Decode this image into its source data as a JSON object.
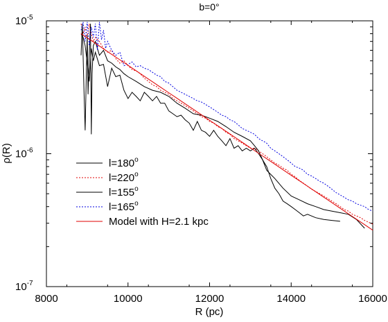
{
  "chart_data": {
    "type": "line",
    "title": "b=0°",
    "xlabel": "R (pc)",
    "ylabel": "ρ(R)",
    "xlim": [
      8000,
      16000
    ],
    "ylim_exponents": [
      -7,
      -5
    ],
    "y_scale": "log",
    "x_ticks": [
      "8000",
      "10000",
      "12000",
      "14000",
      "16000"
    ],
    "y_ticks": [
      {
        "base": "10",
        "exp": "-7",
        "value": 1e-07
      },
      {
        "base": "10",
        "exp": "-6",
        "value": 1e-06
      },
      {
        "base": "10",
        "exp": "-5",
        "value": 1e-05
      }
    ],
    "legend_position": "lower-left",
    "grid": false,
    "series": [
      {
        "name": "l=180°",
        "name_text": "l=180",
        "name_sup": "o",
        "color": "#000000",
        "dash": "",
        "x": [
          8850,
          8900,
          8950,
          9000,
          9050,
          9100,
          9150,
          9200,
          9300,
          9400,
          9500,
          9600,
          9700,
          9800,
          9900,
          10000,
          10100,
          10200,
          10300,
          10400,
          10500,
          10600,
          10700,
          10800,
          10900,
          11000,
          11100,
          11200,
          11300,
          11400,
          11500,
          11600,
          11700,
          11800,
          11900,
          12000,
          12100,
          12200,
          12300,
          12400,
          12500,
          12600,
          12700,
          12800,
          12900,
          13000,
          13100,
          13200,
          13300,
          13400,
          13500,
          13600,
          13700,
          13800,
          13900,
          14000,
          14100,
          14200,
          14300,
          14400,
          14600,
          14800,
          15000,
          15200
        ],
        "y": [
          8e-06,
          7.5e-06,
          6.5e-06,
          4.8e-06,
          3.5e-06,
          6.2e-06,
          5e-06,
          5.8e-06,
          4.6e-06,
          4.7e-06,
          3.2e-06,
          4.4e-06,
          3.8e-06,
          3.9e-06,
          3e-06,
          2.6e-06,
          2.9e-06,
          2.7e-06,
          2.5e-06,
          2.9e-06,
          2.7e-06,
          2.5e-06,
          2.7e-06,
          2.4e-06,
          2.4e-06,
          2.1e-06,
          2e-06,
          1.9e-06,
          1.95e-06,
          1.8e-06,
          1.7e-06,
          1.5e-06,
          1.75e-06,
          1.5e-06,
          1.45e-06,
          1.35e-06,
          1.5e-06,
          1.35e-06,
          1.25e-06,
          1.15e-06,
          1.3e-06,
          1.1e-06,
          1.15e-06,
          1.05e-06,
          1.1e-06,
          1.05e-06,
          1.1e-06,
          1e-06,
          9e-07,
          8e-07,
          6.5e-07,
          5.5e-07,
          5e-07,
          4.4e-07,
          4.2e-07,
          4e-07,
          3.8e-07,
          3.6e-07,
          3.4e-07,
          3.5e-07,
          3.3e-07,
          3.2e-07,
          3.15e-07,
          3.1e-07
        ]
      },
      {
        "name": "l=220°",
        "name_text": "l=220",
        "name_sup": "o",
        "color": "#e00000",
        "dash": "2,2",
        "x": [
          8850,
          8900,
          8950,
          9000,
          9050,
          9100,
          9150,
          9200,
          9300,
          9400,
          9500,
          9600,
          9700,
          9800,
          9900,
          10000,
          10100,
          10200,
          10300,
          10400,
          10500,
          10600,
          10700,
          10800,
          10900,
          11000,
          11100,
          11200,
          11300,
          11400,
          11500,
          11600,
          11700,
          11800,
          11900,
          12000,
          12100,
          12200,
          12300,
          12400,
          12500,
          12600,
          12700,
          12800,
          12900,
          13000,
          13100,
          13200,
          13300,
          13400,
          13500,
          13600,
          13700,
          13800,
          13900,
          14000,
          14100,
          14200,
          14300,
          14400,
          14500,
          14600,
          14700,
          14800,
          14900,
          15000,
          15100,
          15200,
          15300,
          15400,
          15500,
          15600,
          15700,
          15800,
          15900,
          16000
        ],
        "y": [
          9.5e-06,
          8e-06,
          9e-06,
          7.5e-06,
          9.5e-06,
          8e-06,
          7e-06,
          7.5e-06,
          7e-06,
          6.2e-06,
          5.8e-06,
          6e-06,
          5.2e-06,
          4.8e-06,
          5e-06,
          4.6e-06,
          4.3e-06,
          4.2e-06,
          4e-06,
          3.7e-06,
          3.5e-06,
          3.3e-06,
          3.2e-06,
          3e-06,
          2.9e-06,
          2.8e-06,
          2.6e-06,
          2.5e-06,
          2.4e-06,
          2.3e-06,
          2.2e-06,
          2.1e-06,
          2e-06,
          1.9e-06,
          1.85e-06,
          1.75e-06,
          1.7e-06,
          1.6e-06,
          1.55e-06,
          1.45e-06,
          1.4e-06,
          1.3e-06,
          1.25e-06,
          1.2e-06,
          1.15e-06,
          1.1e-06,
          1.1e-06,
          1.05e-06,
          1e-06,
          9.5e-07,
          9e-07,
          8.5e-07,
          8.2e-07,
          7.8e-07,
          7.5e-07,
          7e-07,
          6.7e-07,
          6.3e-07,
          6e-07,
          5.7e-07,
          5.4e-07,
          5.2e-07,
          5e-07,
          4.8e-07,
          4.6e-07,
          4.4e-07,
          4.2e-07,
          4e-07,
          3.8e-07,
          3.7e-07,
          3.5e-07,
          3.4e-07,
          3.3e-07,
          3.15e-07,
          3.05e-07,
          2.95e-07
        ]
      },
      {
        "name": "l=155°",
        "name_text": "l=155",
        "name_sup": "o",
        "color": "#000000",
        "dash": "",
        "x": [
          8850,
          8880,
          8920,
          8950,
          8980,
          9000,
          9020,
          9050,
          9080,
          9100,
          9120,
          9150,
          9200,
          9300,
          9400,
          9500,
          9600,
          9700,
          9800,
          9900,
          10000,
          10200,
          10400,
          10600,
          10800,
          11000,
          11200,
          11400,
          11600,
          11800,
          12000,
          12200,
          12400,
          12600,
          12800,
          13000,
          13100,
          13200,
          13300,
          13400,
          13600,
          13800,
          14000,
          14200,
          14400,
          14600,
          14800,
          15000,
          15200,
          15400,
          15600,
          15800
        ],
        "y": [
          5.5e-06,
          9.5e-06,
          3e-06,
          1.5e-06,
          4.2e-06,
          7.8e-06,
          2.8e-06,
          5.5e-06,
          9.5e-06,
          1.4e-06,
          4e-06,
          6.5e-06,
          7e-06,
          5.5e-06,
          6e-06,
          5e-06,
          4.8e-06,
          4.5e-06,
          4.3e-06,
          4e-06,
          3.8e-06,
          3.5e-06,
          3.2e-06,
          3e-06,
          2.9e-06,
          2.7e-06,
          2.4e-06,
          2.2e-06,
          2e-06,
          1.95e-06,
          1.85e-06,
          1.75e-06,
          1.6e-06,
          1.45e-06,
          1.35e-06,
          1.25e-06,
          1.15e-06,
          1.05e-06,
          9e-07,
          7.5e-07,
          6.5e-07,
          5.5e-07,
          4.8e-07,
          4.5e-07,
          4.2e-07,
          4e-07,
          3.8e-07,
          3.7e-07,
          3.6e-07,
          3.5e-07,
          3.2e-07,
          2.75e-07
        ]
      },
      {
        "name": "l=165°",
        "name_text": "l=165",
        "name_sup": "o",
        "color": "#0000e0",
        "dash": "2,2",
        "x": [
          8850,
          8900,
          8950,
          9000,
          9050,
          9100,
          9150,
          9200,
          9250,
          9300,
          9350,
          9400,
          9450,
          9500,
          9600,
          9700,
          9800,
          9900,
          10000,
          10100,
          10200,
          10300,
          10400,
          10500,
          10600,
          10700,
          10800,
          10900,
          11000,
          11100,
          11200,
          11300,
          11400,
          11500,
          11600,
          11700,
          11800,
          11900,
          12000,
          12100,
          12200,
          12300,
          12400,
          12500,
          12600,
          12700,
          12800,
          12900,
          13000,
          13100,
          13200,
          13300,
          13400,
          13500,
          13600,
          13700,
          13800,
          13900,
          14000,
          14100,
          14200,
          14300,
          14400,
          14500,
          14600,
          14700,
          14800,
          14900,
          15000,
          15100,
          15200,
          15300,
          15400,
          15500,
          15600,
          15700,
          15800,
          15900,
          16000
        ],
        "y": [
          8.5e-06,
          9.8e-06,
          7e-06,
          9.8e-06,
          6.5e-06,
          9e-06,
          7.5e-06,
          9.5e-06,
          6e-06,
          9.8e-06,
          7.2e-06,
          8.5e-06,
          6.2e-06,
          7e-06,
          6e-06,
          5.5e-06,
          5.8e-06,
          4.6e-06,
          4.7e-06,
          4.9e-06,
          4.5e-06,
          4.6e-06,
          4.4e-06,
          4.3e-06,
          4.1e-06,
          3.9e-06,
          3.8e-06,
          3.5e-06,
          3.4e-06,
          3.2e-06,
          3e-06,
          2.9e-06,
          2.8e-06,
          2.7e-06,
          2.6e-06,
          2.5e-06,
          2.45e-06,
          2.35e-06,
          2.25e-06,
          2.15e-06,
          2.05e-06,
          1.95e-06,
          1.9e-06,
          1.8e-06,
          1.75e-06,
          1.65e-06,
          1.55e-06,
          1.5e-06,
          1.45e-06,
          1.4e-06,
          1.3e-06,
          1.25e-06,
          1.2e-06,
          1.1e-06,
          1.05e-06,
          1e-06,
          9.5e-07,
          9e-07,
          8.5e-07,
          8e-07,
          7.8e-07,
          7.5e-07,
          7e-07,
          6.8e-07,
          6.5e-07,
          6.2e-07,
          6e-07,
          5.7e-07,
          5.4e-07,
          5.1e-07,
          4.9e-07,
          4.7e-07,
          4.5e-07,
          4.4e-07,
          4.2e-07,
          4.1e-07,
          4e-07,
          3.8e-07,
          3.7e-07
        ]
      },
      {
        "name": "Model with H=2.1 kpc",
        "name_text": "Model with H=2.1 kpc",
        "name_sup": "",
        "color": "#e00000",
        "dash": "",
        "model": {
          "H_pc": 2100,
          "x": [
            8850,
            16000
          ],
          "y_at_start": 8e-06
        }
      }
    ]
  }
}
